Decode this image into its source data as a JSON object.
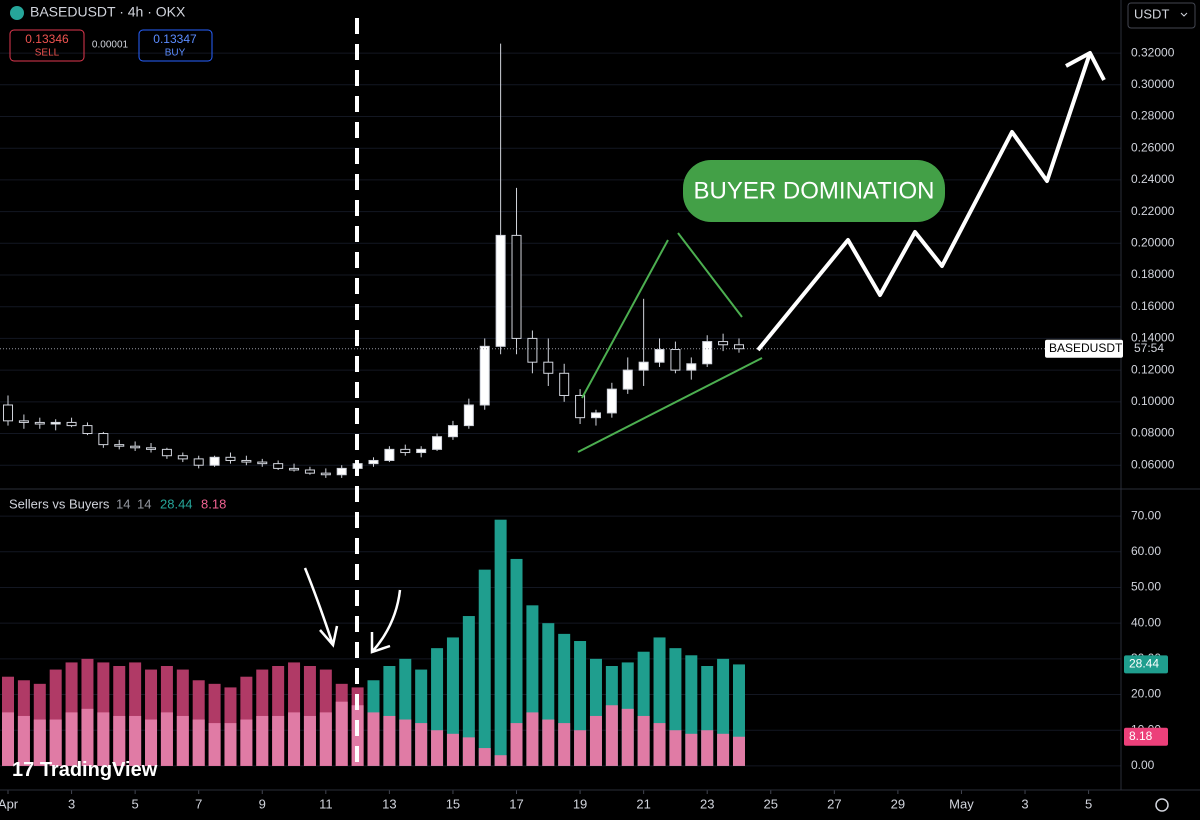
{
  "header": {
    "symbol": "BASEDUSDT · 4h · OKX",
    "sell_price": "0.13346",
    "sell": "SELL",
    "spread": "0.00001",
    "buy_price": "0.13347",
    "buy": "BUY",
    "currency": "USDT",
    "brand": "TradingView"
  },
  "annotations": {
    "callout": "BUYER DOMINATION"
  },
  "chart_data": [
    {
      "type": "candlestick",
      "symbol_label": "BASEDUSDT",
      "countdown": "57:54",
      "x": [
        1,
        1.5,
        2,
        2.5,
        3,
        3.5,
        4,
        4.5,
        5,
        5.5,
        6,
        6.5,
        7,
        7.5,
        8,
        8.5,
        9,
        9.5,
        10,
        10.5,
        11,
        11.5,
        12,
        12.5,
        13,
        13.5,
        14,
        14.5,
        15,
        15.5,
        16,
        16.5,
        17,
        17.5,
        18,
        18.5,
        19,
        19.5,
        20,
        20.5,
        21,
        21.5,
        22,
        22.5,
        23,
        23.5,
        24
      ],
      "open": [
        0.098,
        0.088,
        0.087,
        0.086,
        0.087,
        0.085,
        0.08,
        0.073,
        0.072,
        0.071,
        0.07,
        0.066,
        0.064,
        0.06,
        0.065,
        0.063,
        0.062,
        0.061,
        0.058,
        0.057,
        0.055,
        0.054,
        0.058,
        0.061,
        0.063,
        0.07,
        0.068,
        0.07,
        0.078,
        0.085,
        0.098,
        0.135,
        0.205,
        0.14,
        0.125,
        0.118,
        0.104,
        0.09,
        0.093,
        0.108,
        0.12,
        0.125,
        0.133,
        0.12,
        0.124,
        0.138,
        0.136
      ],
      "high": [
        0.104,
        0.092,
        0.09,
        0.089,
        0.09,
        0.087,
        0.081,
        0.076,
        0.075,
        0.074,
        0.071,
        0.068,
        0.066,
        0.066,
        0.068,
        0.066,
        0.064,
        0.063,
        0.061,
        0.059,
        0.058,
        0.06,
        0.063,
        0.065,
        0.072,
        0.073,
        0.072,
        0.08,
        0.088,
        0.102,
        0.14,
        0.326,
        0.235,
        0.145,
        0.14,
        0.124,
        0.108,
        0.095,
        0.112,
        0.128,
        0.165,
        0.14,
        0.138,
        0.128,
        0.142,
        0.143,
        0.14
      ],
      "low": [
        0.085,
        0.083,
        0.083,
        0.082,
        0.084,
        0.079,
        0.071,
        0.07,
        0.069,
        0.068,
        0.064,
        0.062,
        0.058,
        0.059,
        0.061,
        0.06,
        0.059,
        0.057,
        0.056,
        0.054,
        0.052,
        0.052,
        0.056,
        0.059,
        0.062,
        0.066,
        0.065,
        0.069,
        0.076,
        0.083,
        0.095,
        0.13,
        0.13,
        0.118,
        0.11,
        0.1,
        0.086,
        0.085,
        0.09,
        0.105,
        0.11,
        0.122,
        0.118,
        0.114,
        0.122,
        0.132,
        0.131
      ],
      "close": [
        0.088,
        0.087,
        0.086,
        0.087,
        0.085,
        0.08,
        0.073,
        0.072,
        0.071,
        0.07,
        0.066,
        0.064,
        0.06,
        0.065,
        0.063,
        0.062,
        0.061,
        0.058,
        0.057,
        0.055,
        0.054,
        0.058,
        0.061,
        0.063,
        0.07,
        0.068,
        0.07,
        0.078,
        0.085,
        0.098,
        0.135,
        0.205,
        0.14,
        0.125,
        0.118,
        0.104,
        0.09,
        0.093,
        0.108,
        0.12,
        0.125,
        0.133,
        0.12,
        0.124,
        0.138,
        0.136,
        0.1335
      ],
      "up_color": "#ffffff",
      "down_color": "#000000",
      "grid": true,
      "xlim": [
        0.748,
        36.02
      ],
      "ylim": [
        0.045,
        0.3535
      ],
      "yticks": [
        {
          "value": 0.06,
          "label": "0.06000"
        },
        {
          "value": 0.08,
          "label": "0.08000"
        },
        {
          "value": 0.1,
          "label": "0.10000"
        },
        {
          "value": 0.12,
          "label": "0.12000"
        },
        {
          "value": 0.14,
          "label": "0.14000"
        },
        {
          "value": 0.16,
          "label": "0.16000"
        },
        {
          "value": 0.18,
          "label": "0.18000"
        },
        {
          "value": 0.2,
          "label": "0.20000"
        },
        {
          "value": 0.22,
          "label": "0.22000"
        },
        {
          "value": 0.24,
          "label": "0.24000"
        },
        {
          "value": 0.26,
          "label": "0.26000"
        },
        {
          "value": 0.28,
          "label": "0.28000"
        },
        {
          "value": 0.3,
          "label": "0.30000"
        },
        {
          "value": 0.32,
          "label": "0.32000"
        }
      ]
    },
    {
      "type": "bar",
      "title": "Sellers vs Buyers",
      "params": [
        14,
        14
      ],
      "switch_x": 12.25,
      "series": [
        {
          "color": "#1f9e8e",
          "color_before": "#b03a66",
          "values": [
            25,
            24,
            23,
            27,
            29,
            30,
            29,
            28,
            29,
            27,
            28,
            27,
            24,
            23,
            22,
            25,
            27,
            28,
            29,
            28,
            27,
            23,
            22,
            24,
            28,
            30,
            27,
            33,
            36,
            42,
            55,
            69,
            58,
            45,
            40,
            37,
            35,
            30,
            28,
            29,
            32,
            36,
            33,
            31,
            28,
            30,
            28.44
          ]
        },
        {
          "color": "#e07ba5",
          "values": [
            15,
            14,
            13,
            13,
            15,
            16,
            15,
            14,
            14,
            13,
            15,
            14,
            13,
            12,
            12,
            13,
            14,
            14,
            15,
            14,
            15,
            18,
            17,
            15,
            14,
            13,
            12,
            10,
            9,
            8,
            5,
            3,
            12,
            15,
            13,
            12,
            10,
            14,
            17,
            16,
            14,
            12,
            10,
            9,
            10,
            9,
            8.18
          ]
        }
      ],
      "xlim": [
        0.748,
        36.02
      ],
      "ylim": [
        -6.75,
        77.6
      ],
      "yticks": [
        {
          "value": 0,
          "label": "0.00"
        },
        {
          "value": 10,
          "label": "10.00"
        },
        {
          "value": 20,
          "label": "20.00"
        },
        {
          "value": 30,
          "label": "30.00"
        },
        {
          "value": 40,
          "label": "40.00"
        },
        {
          "value": 50,
          "label": "50.00"
        },
        {
          "value": 60,
          "label": "60.00"
        },
        {
          "value": 70,
          "label": "70.00"
        }
      ],
      "xticks": [
        {
          "value": 1,
          "label": "Apr"
        },
        3,
        5,
        7,
        9,
        11,
        13,
        15,
        17,
        19,
        21,
        23,
        25,
        27,
        29,
        {
          "value": 31,
          "label": "May"
        },
        {
          "value": 33,
          "label": "3"
        },
        {
          "value": 35,
          "label": "5"
        }
      ]
    }
  ]
}
